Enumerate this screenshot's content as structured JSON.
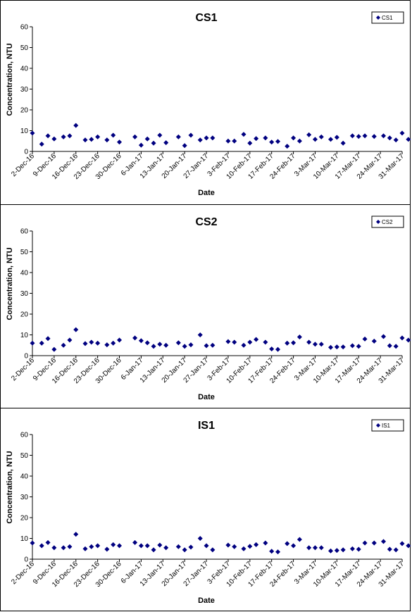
{
  "charts": [
    {
      "title": "CS1",
      "xlabel": "Date",
      "ylabel": "Concentration, NTU",
      "legend": "CS1",
      "ylim": [
        0,
        60
      ],
      "yticks": [
        "0",
        "10",
        "20",
        "30",
        "40",
        "50",
        "60"
      ],
      "xticks": [
        "2-Dec-16",
        "9-Dec-16",
        "16-Dec-16",
        "23-Dec-16",
        "30-Dec-16",
        "6-Jan-17",
        "13-Jan-17",
        "20-Jan-17",
        "27-Jan-17",
        "3-Feb-17",
        "10-Feb-17",
        "17-Feb-17",
        "24-Feb-17",
        "3-Mar-17",
        "10-Mar-17",
        "17-Mar-17",
        "24-Mar-17",
        "31-Mar-17"
      ]
    },
    {
      "title": "CS2",
      "xlabel": "Date",
      "ylabel": "Concentration, NTU",
      "legend": "CS2",
      "ylim": [
        0,
        60
      ],
      "yticks": [
        "0",
        "10",
        "20",
        "30",
        "40",
        "50",
        "60"
      ],
      "xticks": [
        "2-Dec-16",
        "9-Dec-16",
        "16-Dec-16",
        "23-Dec-16",
        "30-Dec-16",
        "6-Jan-17",
        "13-Jan-17",
        "20-Jan-17",
        "27-Jan-17",
        "3-Feb-17",
        "10-Feb-17",
        "17-Feb-17",
        "24-Feb-17",
        "3-Mar-17",
        "10-Mar-17",
        "17-Mar-17",
        "24-Mar-17",
        "31-Mar-17"
      ]
    },
    {
      "title": "IS1",
      "xlabel": "Date",
      "ylabel": "Concentration, NTU",
      "legend": "IS1",
      "ylim": [
        0,
        60
      ],
      "yticks": [
        "0",
        "10",
        "20",
        "30",
        "40",
        "50",
        "60"
      ],
      "xticks": [
        "2-Dec-16",
        "9-Dec-16",
        "16-Dec-16",
        "23-Dec-16",
        "30-Dec-16",
        "6-Jan-17",
        "13-Jan-17",
        "20-Jan-17",
        "27-Jan-17",
        "3-Feb-17",
        "10-Feb-17",
        "17-Feb-17",
        "24-Feb-17",
        "3-Mar-17",
        "10-Mar-17",
        "17-Mar-17",
        "24-Mar-17",
        "31-Mar-17"
      ]
    }
  ],
  "chart_data": [
    {
      "type": "scatter",
      "title": "CS1",
      "xlabel": "Date",
      "ylabel": "Concentration, NTU",
      "ylim": [
        0,
        60
      ],
      "xlim": [
        "2016-12-02",
        "2017-03-31"
      ],
      "grid": false,
      "legend": "top-right",
      "marker_color": "#000080",
      "series": [
        {
          "name": "CS1",
          "points": [
            [
              "2016-12-02",
              8.8
            ],
            [
              "2016-12-05",
              3.5
            ],
            [
              "2016-12-07",
              7.5
            ],
            [
              "2016-12-09",
              6
            ],
            [
              "2016-12-12",
              7
            ],
            [
              "2016-12-14",
              7.5
            ],
            [
              "2016-12-16",
              12.5
            ],
            [
              "2016-12-19",
              5.5
            ],
            [
              "2016-12-21",
              5.8
            ],
            [
              "2016-12-23",
              7
            ],
            [
              "2016-12-26",
              5.5
            ],
            [
              "2016-12-28",
              7.8
            ],
            [
              "2016-12-30",
              4.5
            ],
            [
              "2017-01-04",
              7
            ],
            [
              "2017-01-06",
              3
            ],
            [
              "2017-01-08",
              6
            ],
            [
              "2017-01-10",
              4
            ],
            [
              "2017-01-12",
              7.8
            ],
            [
              "2017-01-14",
              4.2
            ],
            [
              "2017-01-18",
              7
            ],
            [
              "2017-01-20",
              2.8
            ],
            [
              "2017-01-22",
              7.8
            ],
            [
              "2017-01-25",
              5.5
            ],
            [
              "2017-01-27",
              6.5
            ],
            [
              "2017-01-29",
              6.5
            ],
            [
              "2017-02-03",
              5
            ],
            [
              "2017-02-05",
              5
            ],
            [
              "2017-02-08",
              8.2
            ],
            [
              "2017-02-10",
              4
            ],
            [
              "2017-02-12",
              6.2
            ],
            [
              "2017-02-15",
              6.5
            ],
            [
              "2017-02-17",
              4.5
            ],
            [
              "2017-02-19",
              4.8
            ],
            [
              "2017-02-22",
              2.5
            ],
            [
              "2017-02-24",
              6.5
            ],
            [
              "2017-02-26",
              5
            ],
            [
              "2017-03-01",
              8
            ],
            [
              "2017-03-03",
              5.8
            ],
            [
              "2017-03-05",
              7
            ],
            [
              "2017-03-08",
              5.8
            ],
            [
              "2017-03-10",
              6.8
            ],
            [
              "2017-03-12",
              4
            ],
            [
              "2017-03-15",
              7.5
            ],
            [
              "2017-03-17",
              7.2
            ],
            [
              "2017-03-19",
              7.5
            ],
            [
              "2017-03-22",
              7.2
            ],
            [
              "2017-03-25",
              7.5
            ],
            [
              "2017-03-27",
              6.5
            ],
            [
              "2017-03-29",
              5.5
            ],
            [
              "2017-03-31",
              8.8
            ],
            [
              "2017-04-02",
              5.8
            ]
          ]
        }
      ]
    },
    {
      "type": "scatter",
      "title": "CS2",
      "xlabel": "Date",
      "ylabel": "Concentration, NTU",
      "ylim": [
        0,
        60
      ],
      "xlim": [
        "2016-12-02",
        "2017-03-31"
      ],
      "grid": false,
      "legend": "top-right",
      "marker_color": "#000080",
      "series": [
        {
          "name": "CS2",
          "points": [
            [
              "2016-12-02",
              6
            ],
            [
              "2016-12-05",
              6
            ],
            [
              "2016-12-07",
              8.2
            ],
            [
              "2016-12-09",
              3
            ],
            [
              "2016-12-12",
              5
            ],
            [
              "2016-12-14",
              7.5
            ],
            [
              "2016-12-16",
              12.5
            ],
            [
              "2016-12-19",
              5.8
            ],
            [
              "2016-12-21",
              6.5
            ],
            [
              "2016-12-23",
              6
            ],
            [
              "2016-12-26",
              5.2
            ],
            [
              "2016-12-28",
              6
            ],
            [
              "2016-12-30",
              7.5
            ],
            [
              "2017-01-04",
              8.5
            ],
            [
              "2017-01-06",
              7.2
            ],
            [
              "2017-01-08",
              6.2
            ],
            [
              "2017-01-10",
              4.5
            ],
            [
              "2017-01-12",
              5.5
            ],
            [
              "2017-01-14",
              5
            ],
            [
              "2017-01-18",
              6.2
            ],
            [
              "2017-01-20",
              4.5
            ],
            [
              "2017-01-22",
              5.2
            ],
            [
              "2017-01-25",
              10
            ],
            [
              "2017-01-27",
              4.8
            ],
            [
              "2017-01-29",
              5
            ],
            [
              "2017-02-03",
              6.8
            ],
            [
              "2017-02-05",
              6.5
            ],
            [
              "2017-02-08",
              5
            ],
            [
              "2017-02-10",
              6.5
            ],
            [
              "2017-02-12",
              7.8
            ],
            [
              "2017-02-15",
              6.5
            ],
            [
              "2017-02-17",
              3.2
            ],
            [
              "2017-02-19",
              3
            ],
            [
              "2017-02-22",
              6
            ],
            [
              "2017-02-24",
              6.2
            ],
            [
              "2017-02-26",
              9
            ],
            [
              "2017-03-01",
              6.5
            ],
            [
              "2017-03-03",
              5.5
            ],
            [
              "2017-03-05",
              5.5
            ],
            [
              "2017-03-08",
              4
            ],
            [
              "2017-03-10",
              4.2
            ],
            [
              "2017-03-12",
              4.2
            ],
            [
              "2017-03-15",
              4.8
            ],
            [
              "2017-03-17",
              4.5
            ],
            [
              "2017-03-19",
              8
            ],
            [
              "2017-03-22",
              7
            ],
            [
              "2017-03-25",
              9.2
            ],
            [
              "2017-03-27",
              4.8
            ],
            [
              "2017-03-29",
              4.5
            ],
            [
              "2017-03-31",
              8.5
            ],
            [
              "2017-04-02",
              7.5
            ]
          ]
        }
      ]
    },
    {
      "type": "scatter",
      "title": "IS1",
      "xlabel": "Date",
      "ylabel": "Concentration, NTU",
      "ylim": [
        0,
        60
      ],
      "xlim": [
        "2016-12-02",
        "2017-03-31"
      ],
      "grid": false,
      "legend": "top-right",
      "marker_color": "#000080",
      "series": [
        {
          "name": "IS1",
          "points": [
            [
              "2016-12-02",
              7.8
            ],
            [
              "2016-12-05",
              6.5
            ],
            [
              "2016-12-07",
              8
            ],
            [
              "2016-12-09",
              5.5
            ],
            [
              "2016-12-12",
              5.5
            ],
            [
              "2016-12-14",
              6
            ],
            [
              "2016-12-16",
              12
            ],
            [
              "2016-12-19",
              5
            ],
            [
              "2016-12-21",
              6
            ],
            [
              "2016-12-23",
              6.5
            ],
            [
              "2016-12-26",
              4.8
            ],
            [
              "2016-12-28",
              7
            ],
            [
              "2016-12-30",
              6.5
            ],
            [
              "2017-01-04",
              8
            ],
            [
              "2017-01-06",
              6.5
            ],
            [
              "2017-01-08",
              6.5
            ],
            [
              "2017-01-10",
              4.5
            ],
            [
              "2017-01-12",
              6.8
            ],
            [
              "2017-01-14",
              5.5
            ],
            [
              "2017-01-18",
              6
            ],
            [
              "2017-01-20",
              4.5
            ],
            [
              "2017-01-22",
              5.8
            ],
            [
              "2017-01-25",
              10
            ],
            [
              "2017-01-27",
              6.5
            ],
            [
              "2017-01-29",
              4.5
            ],
            [
              "2017-02-03",
              6.8
            ],
            [
              "2017-02-05",
              6
            ],
            [
              "2017-02-08",
              5
            ],
            [
              "2017-02-10",
              6.2
            ],
            [
              "2017-02-12",
              7
            ],
            [
              "2017-02-15",
              7.8
            ],
            [
              "2017-02-17",
              3.8
            ],
            [
              "2017-02-19",
              3.5
            ],
            [
              "2017-02-22",
              7.5
            ],
            [
              "2017-02-24",
              6.5
            ],
            [
              "2017-02-26",
              9.5
            ],
            [
              "2017-03-01",
              5.5
            ],
            [
              "2017-03-03",
              5.5
            ],
            [
              "2017-03-05",
              5.5
            ],
            [
              "2017-03-08",
              4
            ],
            [
              "2017-03-10",
              4.2
            ],
            [
              "2017-03-12",
              4.5
            ],
            [
              "2017-03-15",
              5
            ],
            [
              "2017-03-17",
              4.8
            ],
            [
              "2017-03-19",
              7.8
            ],
            [
              "2017-03-22",
              7.8
            ],
            [
              "2017-03-25",
              8.5
            ],
            [
              "2017-03-27",
              4.8
            ],
            [
              "2017-03-29",
              4.5
            ],
            [
              "2017-03-31",
              7.5
            ],
            [
              "2017-04-02",
              6.5
            ]
          ]
        }
      ]
    }
  ]
}
